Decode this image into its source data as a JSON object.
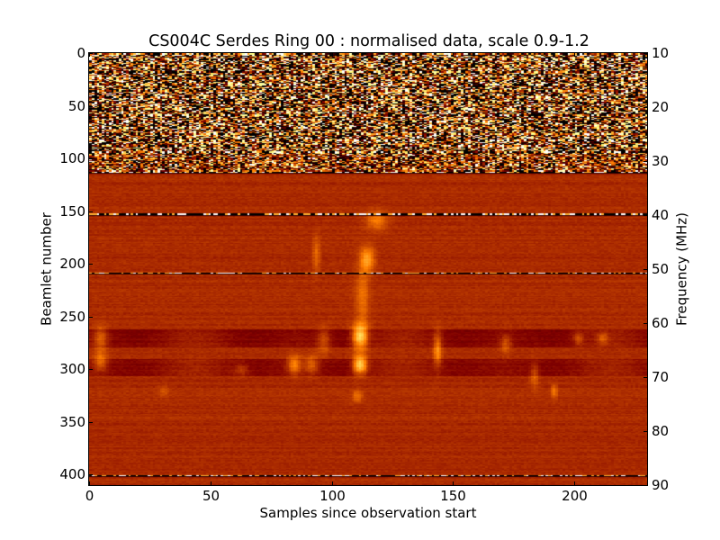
{
  "chart_data": {
    "type": "heatmap",
    "title": "CS004C Serdes Ring 00 : normalised data, scale 0.9-1.2",
    "xlabel": "Samples since observation start",
    "ylabel": "Beamlet number",
    "y2label": "Frequency (MHz)",
    "xlim": [
      0,
      230
    ],
    "ylim": [
      410,
      0
    ],
    "y2lim": [
      90,
      10
    ],
    "color_scale": {
      "min": 0.9,
      "max": 1.2,
      "colormap": "afmhot"
    },
    "xticks": [
      0,
      50,
      100,
      150,
      200
    ],
    "yticks": [
      0,
      50,
      100,
      150,
      200,
      250,
      300,
      350,
      400
    ],
    "y2ticks": [
      10,
      20,
      30,
      40,
      50,
      60,
      70,
      80,
      90
    ],
    "grid": false,
    "features": {
      "noisy_band_beamlets": [
        0,
        112
      ],
      "bright_horizontal_lines_beamlets": [
        112,
        152,
        208,
        400
      ],
      "burst_sample": 111,
      "burst_beamlet_range": [
        140,
        320
      ],
      "dark_bands_beamlets": [
        [
          262,
          278
        ],
        [
          290,
          305
        ]
      ]
    }
  }
}
